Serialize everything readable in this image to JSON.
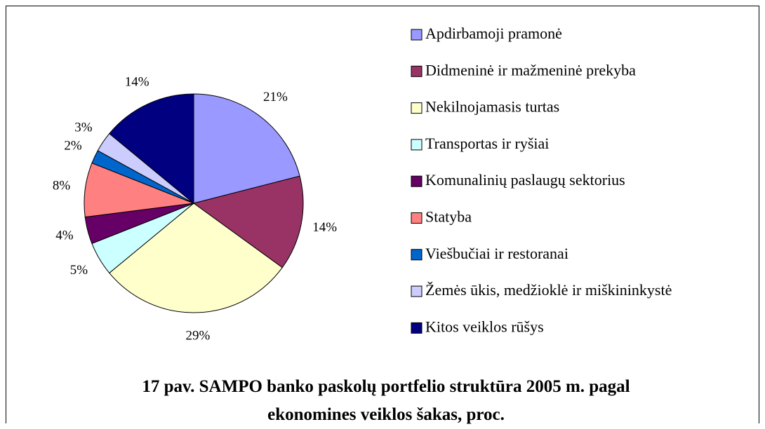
{
  "chart_data": {
    "type": "pie",
    "title": "17 pav. SAMPO banko paskolų portfelio struktūra 2005 m. pagal ekonomines veiklos šakas, proc.",
    "categories": [
      "Apdirbamoji pramonė",
      "Didmeninė ir mažmeninė prekyba",
      "Nekilnojamasis turtas",
      "Transportas ir ryšiai",
      "Komunalinių paslaugų sektorius",
      "Statyba",
      "Viešbučiai ir restoranai",
      "Žemės ūkis, medžioklė ir miškininkystė",
      "Kitos veiklos rūšys"
    ],
    "values": [
      21,
      14,
      29,
      5,
      4,
      8,
      2,
      3,
      14
    ],
    "value_labels": [
      "21%",
      "14%",
      "29%",
      "5%",
      "4%",
      "8%",
      "2%",
      "3%",
      "14%"
    ],
    "colors": [
      "#9999ff",
      "#993366",
      "#ffffcc",
      "#ccffff",
      "#660066",
      "#ff8080",
      "#0066cc",
      "#ccccff",
      "#000080"
    ],
    "legend": "right"
  }
}
